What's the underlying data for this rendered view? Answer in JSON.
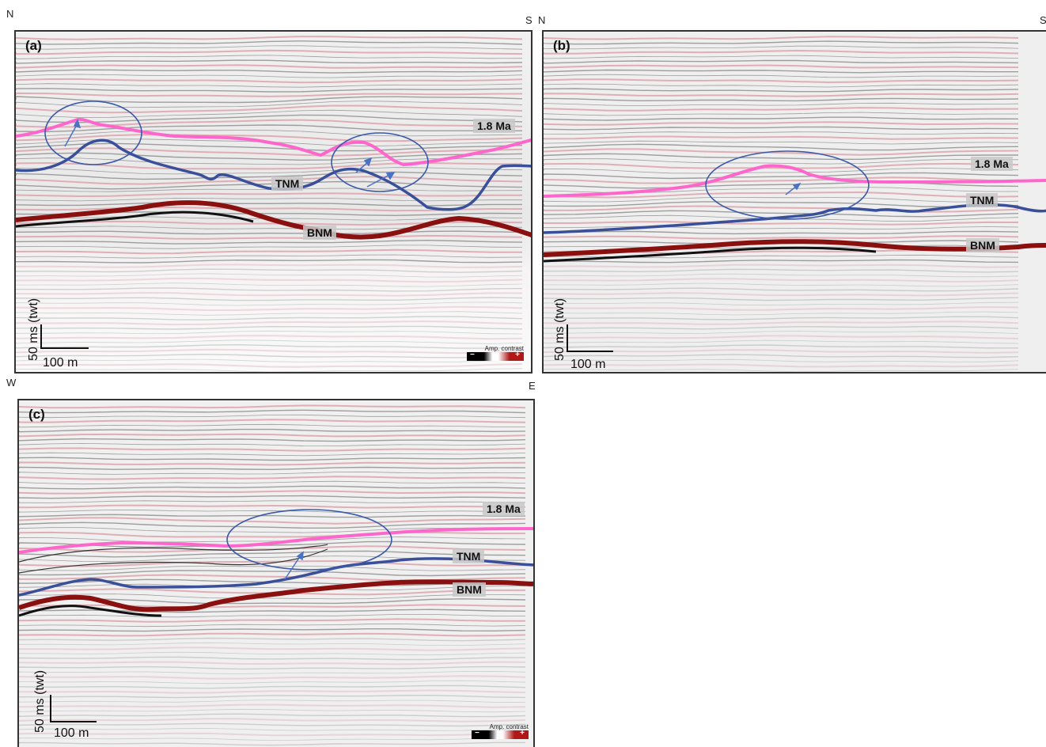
{
  "compass": {
    "a_left": "N",
    "a_right": "S",
    "b_left": "N",
    "b_right": "S",
    "c_left": "W",
    "c_right": "E"
  },
  "panels": {
    "a": {
      "label": "(a)",
      "horizon_18": "1.8 Ma",
      "tnm": "TNM",
      "bnm": "BNM",
      "scale_v": "50 ms (twt)",
      "scale_h": "100 m",
      "legend_title": "Amp. contrast",
      "legend_minus": "−",
      "legend_plus": "+"
    },
    "b": {
      "label": "(b)",
      "horizon_18": "1.8 Ma",
      "tnm": "TNM",
      "bnm": "BNM",
      "scale_v": "50 ms (twt)",
      "scale_h": "100 m"
    },
    "c": {
      "label": "(c)",
      "horizon_18": "1.8 Ma",
      "tnm": "TNM",
      "bnm": "BNM",
      "scale_v": "50 ms (twt)",
      "scale_h": "100 m",
      "legend_title": "Amp. contrast",
      "legend_minus": "−",
      "legend_plus": "+"
    }
  },
  "colors": {
    "horizon_18": "#ff66cc",
    "tnm": "#3a4f9a",
    "bnm": "#a01414",
    "annotation": "#4a72c4",
    "reflector_red": "#d9a0a8",
    "reflector_dark": "#8a8a8a"
  }
}
